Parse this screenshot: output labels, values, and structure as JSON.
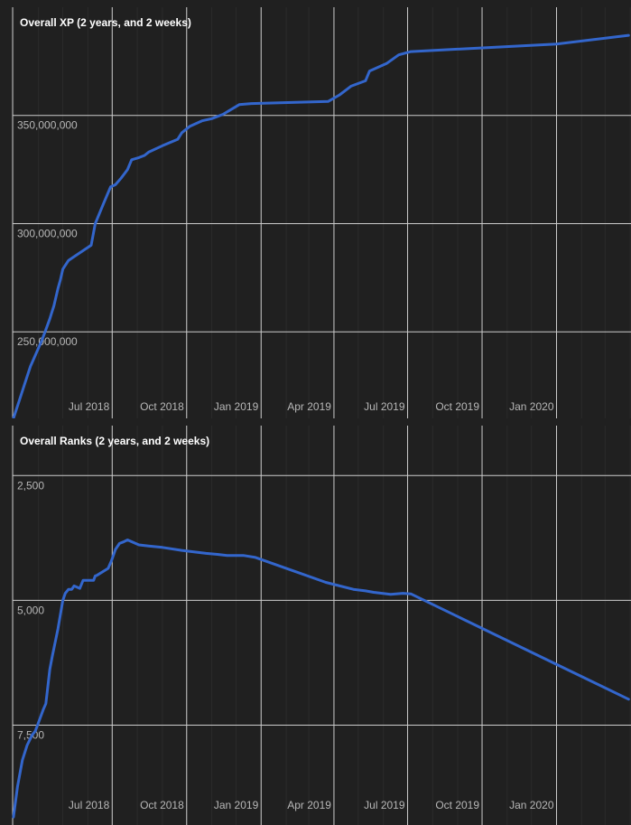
{
  "chart_data": [
    {
      "type": "line",
      "title": "Overall XP (2 years, and 2 weeks)",
      "xlabel": "",
      "ylabel": "",
      "x_ticks": [
        "Jul 2018",
        "Oct 2018",
        "Jan 2019",
        "Apr 2019",
        "Jul 2019",
        "Oct 2019",
        "Jan 2020"
      ],
      "y_ticks": [
        "250,000,000",
        "300,000,000",
        "350,000,000"
      ],
      "y_tick_values": [
        250000000,
        300000000,
        350000000
      ],
      "xlim": [
        "2018-02-28",
        "2020-04-02"
      ],
      "ylim": [
        210000000,
        400000000
      ],
      "grid": true,
      "series": [
        {
          "color": "#3366cc",
          "x": [
            "2018-03-01",
            "2018-03-08",
            "2018-03-15",
            "2018-03-22",
            "2018-03-29",
            "2018-04-05",
            "2018-04-10",
            "2018-04-15",
            "2018-04-17",
            "2018-04-20",
            "2018-04-25",
            "2018-04-28",
            "2018-05-01",
            "2018-05-08",
            "2018-05-14",
            "2018-05-20",
            "2018-06-05",
            "2018-06-10",
            "2018-06-20",
            "2018-06-29",
            "2018-07-05",
            "2018-07-12",
            "2018-07-15",
            "2018-07-20",
            "2018-07-25",
            "2018-08-03",
            "2018-08-10",
            "2018-08-15",
            "2018-09-01",
            "2018-09-20",
            "2018-09-25",
            "2018-10-05",
            "2018-10-20",
            "2018-11-01",
            "2018-11-15",
            "2018-12-05",
            "2018-12-20",
            "2019-03-25",
            "2019-04-08",
            "2019-04-22",
            "2019-05-10",
            "2019-05-15",
            "2019-06-05",
            "2019-06-20",
            "2019-06-30",
            "2019-07-05",
            "2020-01-01",
            "2020-03-30"
          ],
          "y": [
            210000000,
            218000000,
            226000000,
            234000000,
            240000000,
            246000000,
            251000000,
            256000000,
            258500000,
            262000000,
            270000000,
            274000000,
            279000000,
            283000000,
            284500000,
            286000000,
            290000000,
            300000000,
            309000000,
            317000000,
            318000000,
            321000000,
            322500000,
            325000000,
            329500000,
            330500000,
            331500000,
            333000000,
            336000000,
            339000000,
            342000000,
            345000000,
            347500000,
            348500000,
            350500000,
            355000000,
            355500000,
            356500000,
            359500000,
            363500000,
            366000000,
            370500000,
            374000000,
            378000000,
            379000000,
            379500000,
            383000000,
            387000000
          ]
        }
      ]
    },
    {
      "type": "line",
      "title": "Overall Ranks (2 years, and 2 weeks)",
      "xlabel": "",
      "ylabel": "",
      "x_ticks": [
        "Jul 2018",
        "Oct 2018",
        "Jan 2019",
        "Apr 2019",
        "Jul 2019",
        "Oct 2019",
        "Jan 2020"
      ],
      "y_ticks": [
        "2,500",
        "5,000",
        "7,500"
      ],
      "y_tick_values": [
        2500,
        5000,
        7500
      ],
      "xlim": [
        "2018-02-28",
        "2020-04-02"
      ],
      "ylim": [
        9500,
        1500
      ],
      "grid": true,
      "series": [
        {
          "color": "#3366cc",
          "x": [
            "2018-03-01",
            "2018-03-06",
            "2018-03-12",
            "2018-03-18",
            "2018-03-24",
            "2018-03-28",
            "2018-04-02",
            "2018-04-07",
            "2018-04-10",
            "2018-04-15",
            "2018-04-18",
            "2018-04-25",
            "2018-05-01",
            "2018-05-04",
            "2018-05-08",
            "2018-05-12",
            "2018-05-15",
            "2018-05-22",
            "2018-05-26",
            "2018-06-01",
            "2018-06-08",
            "2018-06-10",
            "2018-06-12",
            "2018-06-26",
            "2018-06-30",
            "2018-07-05",
            "2018-07-10",
            "2018-07-15",
            "2018-07-20",
            "2018-07-27",
            "2018-08-03",
            "2018-08-15",
            "2018-09-01",
            "2018-09-25",
            "2018-10-25",
            "2018-11-08",
            "2018-11-20",
            "2018-12-10",
            "2018-12-25",
            "2019-03-22",
            "2019-04-25",
            "2019-05-10",
            "2019-05-20",
            "2019-06-10",
            "2019-06-25",
            "2019-07-05",
            "2020-03-30"
          ],
          "y": [
            9340,
            8730,
            8200,
            7900,
            7700,
            7620,
            7400,
            7180,
            7070,
            6380,
            6120,
            5570,
            5000,
            4860,
            4780,
            4780,
            4710,
            4760,
            4600,
            4600,
            4600,
            4510,
            4500,
            4360,
            4210,
            3980,
            3860,
            3830,
            3790,
            3840,
            3890,
            3910,
            3940,
            4000,
            4060,
            4080,
            4100,
            4100,
            4140,
            4640,
            4780,
            4810,
            4840,
            4880,
            4860,
            4870,
            6980
          ]
        }
      ]
    }
  ]
}
